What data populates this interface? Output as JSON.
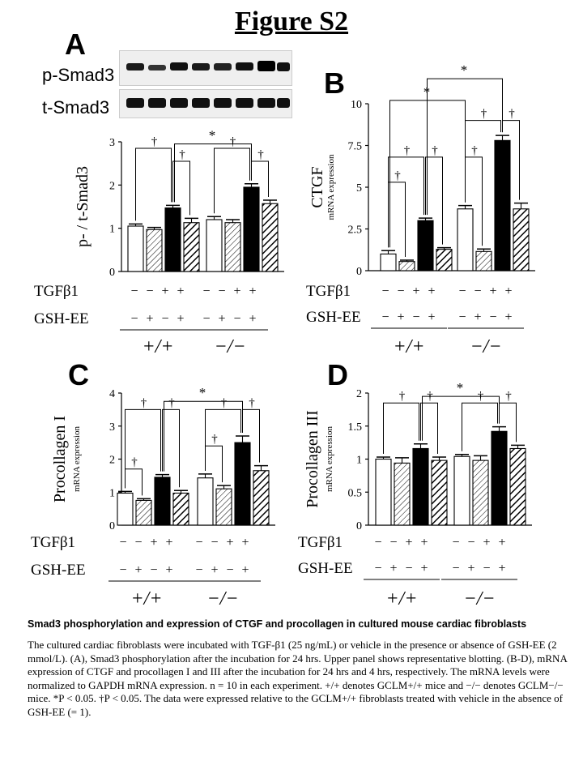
{
  "figure_title": "Figure S2",
  "panel_letters": {
    "A": "A",
    "B": "B",
    "C": "C",
    "D": "D"
  },
  "blot": {
    "labels": [
      "p-Smad3",
      "t-Smad3"
    ]
  },
  "conditions": {
    "row1_label": "TGFβ1",
    "row2_label": "GSH-EE",
    "tgf_signs": [
      "−",
      "−",
      "+",
      "+"
    ],
    "gsh_signs": [
      "−",
      "+",
      "−",
      "+"
    ],
    "groups": [
      "+/+",
      "−/−"
    ]
  },
  "caption": {
    "title": "Smad3 phosphorylation and expression of CTGF and procollagen in cultured mouse cardiac fibroblasts",
    "body": "The cultured cardiac fibroblasts were incubated with TGF-β1 (25 ng/mL) or vehicle in the presence or absence of GSH-EE (2 mmol/L). (A), Smad3 phosphorylation after the incubation for 24 hrs. Upper panel shows representative blotting. (B-D), mRNA expression of CTGF and procollagen I and III after the incubation for 24 hrs and 4 hrs, respectively. The mRNA levels were normalized to GAPDH mRNA expression. n = 10 in each experiment. +/+ denotes GCLM+/+ mice and −/− denotes GCLM−/− mice. *P < 0.05. †P < 0.05. The data were expressed relative to the GCLM+/+ fibroblasts treated with vehicle in the absence of GSH-EE (= 1)."
  },
  "chart_data": [
    {
      "id": "A",
      "type": "bar",
      "ylabel": "p- / t-Smad3",
      "ylabel_sub": "",
      "ylim": [
        0,
        3
      ],
      "yticks": [
        "0",
        "1",
        "2",
        "3"
      ],
      "groups": [
        "+/+",
        "−/−"
      ],
      "bar_fills": [
        "white",
        "hatch-thin",
        "black",
        "hatch-thick"
      ],
      "series_values": [
        [
          1.05,
          0.97,
          1.47,
          1.13
        ],
        [
          1.2,
          1.13,
          1.95,
          1.57
        ]
      ],
      "errors": [
        [
          0.05,
          0.05,
          0.06,
          0.1
        ],
        [
          0.07,
          0.07,
          0.08,
          0.08
        ]
      ]
    },
    {
      "id": "B",
      "type": "bar",
      "ylabel": "CTGF",
      "ylabel_sub": "mRNA expression",
      "ylim": [
        0,
        10
      ],
      "yticks": [
        "0",
        "2.5",
        "5",
        "7.5",
        "10"
      ],
      "groups": [
        "+/+",
        "−/−"
      ],
      "bar_fills": [
        "white",
        "hatch-thin",
        "black",
        "hatch-thick"
      ],
      "series_values": [
        [
          1.0,
          0.55,
          3.0,
          1.28
        ],
        [
          3.7,
          1.15,
          7.8,
          3.7
        ]
      ],
      "errors": [
        [
          0.2,
          0.08,
          0.15,
          0.1
        ],
        [
          0.2,
          0.15,
          0.3,
          0.35
        ]
      ]
    },
    {
      "id": "C",
      "type": "bar",
      "ylabel": "Procollagen I",
      "ylabel_sub": "mRNA expression",
      "ylim": [
        0,
        4
      ],
      "yticks": [
        "0",
        "1",
        "2",
        "3",
        "4"
      ],
      "groups": [
        "+/+",
        "−/−"
      ],
      "bar_fills": [
        "white",
        "hatch-thin",
        "black",
        "hatch-thick"
      ],
      "series_values": [
        [
          0.97,
          0.75,
          1.45,
          0.97
        ],
        [
          1.43,
          1.1,
          2.5,
          1.65
        ]
      ],
      "errors": [
        [
          0.05,
          0.05,
          0.08,
          0.08
        ],
        [
          0.12,
          0.1,
          0.2,
          0.15
        ]
      ]
    },
    {
      "id": "D",
      "type": "bar",
      "ylabel": "Procollagen III",
      "ylabel_sub": "mRNA expression",
      "ylim": [
        0,
        2
      ],
      "yticks": [
        "0",
        "0.5",
        "1",
        "1.5",
        "2"
      ],
      "groups": [
        "+/+",
        "−/−"
      ],
      "bar_fills": [
        "white",
        "hatch-thin",
        "black",
        "hatch-thick"
      ],
      "series_values": [
        [
          1.0,
          0.94,
          1.16,
          0.98
        ],
        [
          1.04,
          0.98,
          1.42,
          1.16
        ]
      ],
      "errors": [
        [
          0.03,
          0.08,
          0.07,
          0.05
        ],
        [
          0.03,
          0.07,
          0.07,
          0.05
        ]
      ]
    }
  ]
}
